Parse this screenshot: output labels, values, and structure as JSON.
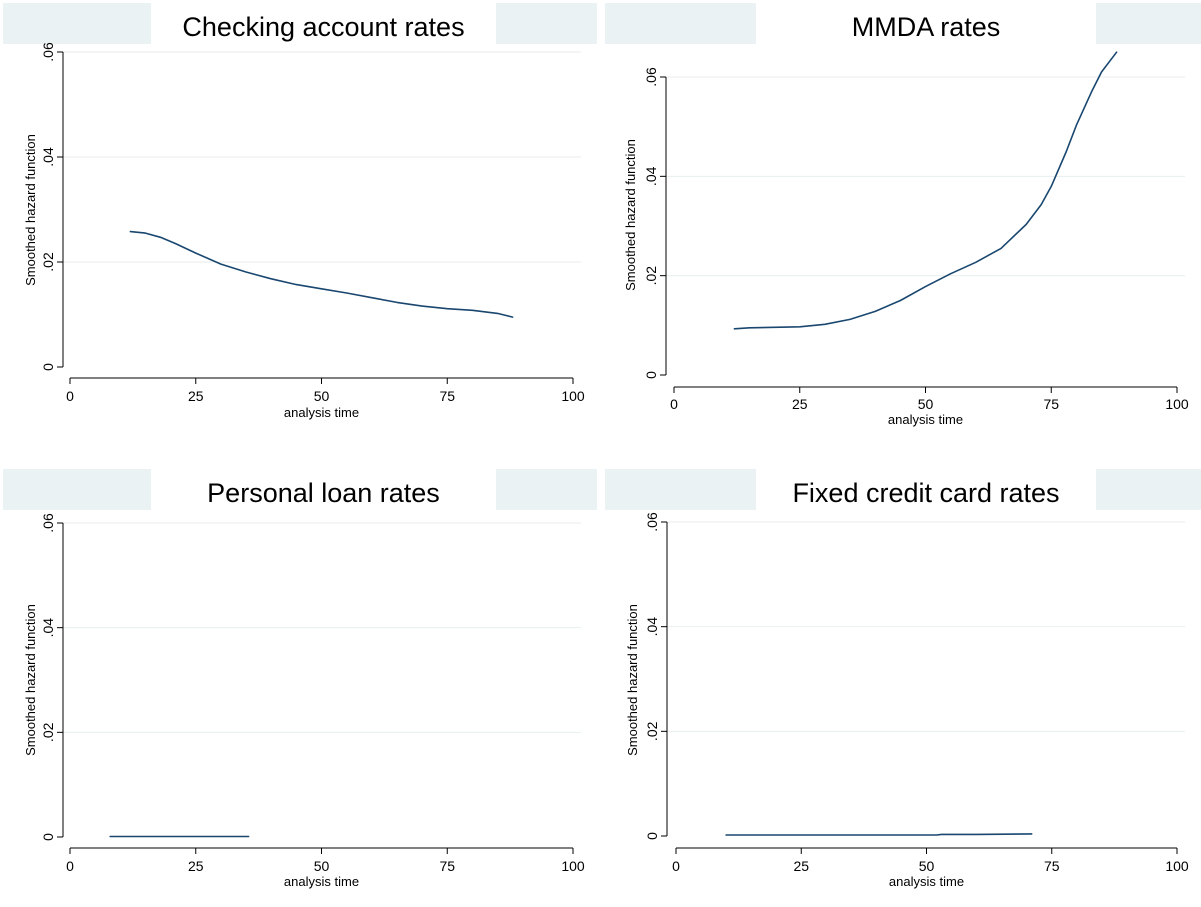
{
  "chart_data": [
    {
      "type": "line",
      "title": "Checking account rates",
      "xlabel": "analysis time",
      "ylabel": "Smoothed hazard function",
      "xlim": [
        0,
        100
      ],
      "ylim": [
        0,
        0.06
      ],
      "xticks": [
        0,
        25,
        50,
        75,
        100
      ],
      "xtick_labels": [
        "0",
        "25",
        "50",
        "75",
        "100"
      ],
      "yticks": [
        0,
        0.02,
        0.04,
        0.06
      ],
      "ytick_labels": [
        "0",
        ".02",
        ".04",
        ".06"
      ],
      "grid": true,
      "series": [
        {
          "x": [
            12,
            15,
            18,
            21,
            25,
            30,
            35,
            40,
            45,
            50,
            55,
            60,
            65,
            70,
            75,
            80,
            85,
            88
          ],
          "y": [
            0.0258,
            0.0255,
            0.0247,
            0.0235,
            0.0217,
            0.0196,
            0.0181,
            0.0168,
            0.0157,
            0.0149,
            0.0141,
            0.0132,
            0.0123,
            0.0116,
            0.0111,
            0.0108,
            0.0102,
            0.0095
          ]
        }
      ]
    },
    {
      "type": "line",
      "title": "MMDA rates",
      "xlabel": "analysis time",
      "ylabel": "Smoothed hazard function",
      "xlim": [
        0,
        100
      ],
      "ylim": [
        0,
        0.06
      ],
      "xticks": [
        0,
        25,
        50,
        75,
        100
      ],
      "xtick_labels": [
        "0",
        "25",
        "50",
        "75",
        "100"
      ],
      "yticks": [
        0,
        0.02,
        0.04,
        0.06
      ],
      "ytick_labels": [
        "0",
        ".02",
        ".04",
        ".06"
      ],
      "grid": true,
      "series": [
        {
          "x": [
            12,
            15,
            20,
            25,
            30,
            35,
            40,
            45,
            50,
            55,
            60,
            65,
            70,
            73,
            75,
            78,
            80,
            83,
            85,
            88
          ],
          "y": [
            0.0093,
            0.0095,
            0.0096,
            0.0097,
            0.0102,
            0.0112,
            0.0128,
            0.015,
            0.0178,
            0.0204,
            0.0227,
            0.0255,
            0.0303,
            0.0343,
            0.038,
            0.045,
            0.0503,
            0.057,
            0.061,
            0.065
          ]
        }
      ]
    },
    {
      "type": "line",
      "title": "Personal loan rates",
      "xlabel": "analysis time",
      "ylabel": "Smoothed hazard function",
      "xlim": [
        0,
        100
      ],
      "ylim": [
        0,
        0.06
      ],
      "xticks": [
        0,
        25,
        50,
        75,
        100
      ],
      "xtick_labels": [
        "0",
        "25",
        "50",
        "75",
        "100"
      ],
      "yticks": [
        0,
        0.02,
        0.04,
        0.06
      ],
      "ytick_labels": [
        "0",
        ".02",
        ".04",
        ".06"
      ],
      "grid": true,
      "series": [
        {
          "x": [
            8,
            15,
            25,
            35.5
          ],
          "y": [
            0.0001,
            0.0001,
            0.0001,
            0.0001
          ]
        }
      ]
    },
    {
      "type": "line",
      "title": "Fixed credit card rates",
      "xlabel": "analysis time",
      "ylabel": "Smoothed hazard function",
      "xlim": [
        0,
        100
      ],
      "ylim": [
        0,
        0.06
      ],
      "xticks": [
        0,
        25,
        50,
        75,
        100
      ],
      "xtick_labels": [
        "0",
        "25",
        "50",
        "75",
        "100"
      ],
      "yticks": [
        0,
        0.02,
        0.04,
        0.06
      ],
      "ytick_labels": [
        "0",
        ".02",
        ".04",
        ".06"
      ],
      "grid": true,
      "series": [
        {
          "x": [
            10,
            30,
            52,
            53,
            60,
            71
          ],
          "y": [
            0.0002,
            0.0002,
            0.0002,
            0.0003,
            0.0003,
            0.0004
          ]
        }
      ]
    }
  ],
  "colors": {
    "panel_background": "#eaf2f3",
    "plot_background": "#ffffff",
    "line": "#1a476f",
    "grid": "#e8eeee",
    "axis": "#000000"
  }
}
